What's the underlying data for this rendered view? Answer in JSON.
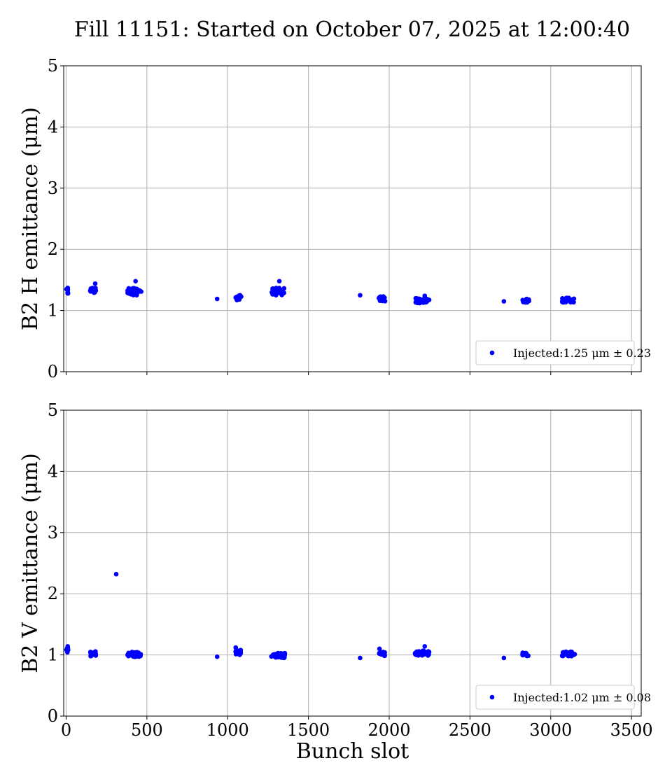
{
  "figure": {
    "title": "Fill 11151: Started on October 07, 2025 at 12:00:40"
  },
  "chart_data": [
    {
      "type": "scatter",
      "ylabel": "B2 H emittance (μm)",
      "xlim": [
        -15,
        3560
      ],
      "ylim": [
        0,
        5
      ],
      "xticks": [
        0,
        500,
        1000,
        1500,
        2000,
        2500,
        3000,
        3500
      ],
      "yticks": [
        0,
        1,
        2,
        3,
        4,
        5
      ],
      "show_xtick_labels": false,
      "grid": true,
      "legend_position": "lower-right",
      "marker_color": "#0000ff",
      "series": [
        {
          "name": "Injected:1.25 μm ± 0.23",
          "clusters": [
            {
              "x0": 0,
              "x1": 15,
              "mean": 1.31,
              "spread": 0.05
            },
            {
              "x0": 145,
              "x1": 185,
              "mean": 1.33,
              "spread": 0.05
            },
            {
              "x0": 380,
              "x1": 465,
              "mean": 1.31,
              "spread": 0.06
            },
            {
              "x0": 1045,
              "x1": 1085,
              "mean": 1.21,
              "spread": 0.04
            },
            {
              "x0": 1270,
              "x1": 1355,
              "mean": 1.31,
              "spread": 0.06
            },
            {
              "x0": 1935,
              "x1": 1975,
              "mean": 1.19,
              "spread": 0.04
            },
            {
              "x0": 2160,
              "x1": 2250,
              "mean": 1.16,
              "spread": 0.04
            },
            {
              "x0": 2825,
              "x1": 2865,
              "mean": 1.16,
              "spread": 0.03
            },
            {
              "x0": 3070,
              "x1": 3150,
              "mean": 1.17,
              "spread": 0.04
            }
          ],
          "points": [
            [
              180,
              1.44
            ],
            [
              430,
              1.48
            ],
            [
              1320,
              1.48
            ],
            [
              935,
              1.19
            ],
            [
              1820,
              1.25
            ],
            [
              2710,
              1.15
            ],
            [
              10,
              1.37
            ],
            [
              2220,
              1.24
            ]
          ]
        }
      ]
    },
    {
      "type": "scatter",
      "xlabel": "Bunch slot",
      "ylabel": "B2 V emittance (μm)",
      "xlim": [
        -15,
        3560
      ],
      "ylim": [
        0,
        5
      ],
      "xticks": [
        0,
        500,
        1000,
        1500,
        2000,
        2500,
        3000,
        3500
      ],
      "yticks": [
        0,
        1,
        2,
        3,
        4,
        5
      ],
      "show_xtick_labels": true,
      "grid": true,
      "legend_position": "lower-right",
      "marker_color": "#0000ff",
      "series": [
        {
          "name": "Injected:1.02 μm ± 0.08",
          "clusters": [
            {
              "x0": 0,
              "x1": 15,
              "mean": 1.08,
              "spread": 0.04
            },
            {
              "x0": 145,
              "x1": 185,
              "mean": 1.02,
              "spread": 0.04
            },
            {
              "x0": 380,
              "x1": 465,
              "mean": 1.01,
              "spread": 0.04
            },
            {
              "x0": 1045,
              "x1": 1085,
              "mean": 1.04,
              "spread": 0.04
            },
            {
              "x0": 1270,
              "x1": 1355,
              "mean": 0.99,
              "spread": 0.04
            },
            {
              "x0": 1935,
              "x1": 1975,
              "mean": 1.02,
              "spread": 0.04
            },
            {
              "x0": 2160,
              "x1": 2250,
              "mean": 1.03,
              "spread": 0.04
            },
            {
              "x0": 2825,
              "x1": 2865,
              "mean": 1.01,
              "spread": 0.03
            },
            {
              "x0": 3070,
              "x1": 3150,
              "mean": 1.02,
              "spread": 0.04
            }
          ],
          "points": [
            [
              310,
              2.32
            ],
            [
              935,
              0.97
            ],
            [
              1820,
              0.95
            ],
            [
              2710,
              0.95
            ],
            [
              10,
              1.14
            ],
            [
              2220,
              1.14
            ],
            [
              1050,
              1.12
            ],
            [
              1940,
              1.1
            ]
          ]
        }
      ]
    }
  ]
}
